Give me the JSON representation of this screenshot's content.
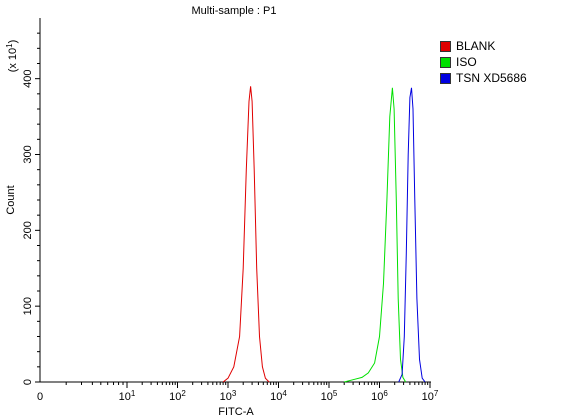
{
  "chart_data": {
    "type": "line",
    "title": "Multi-sample : P1",
    "xlabel": "FITC-A",
    "ylabel": "Count",
    "y_multiplier_label": "(x 10",
    "y_multiplier_exp": "1",
    "y_multiplier_close": ")",
    "x_scale": "log",
    "xlim": [
      0,
      10000000
    ],
    "ylim": [
      0,
      480
    ],
    "x_tick_values": [
      10,
      100,
      1000,
      10000,
      100000,
      1000000,
      10000000
    ],
    "x_tick_bases": [
      "10",
      "10",
      "10",
      "10",
      "10",
      "10",
      "10"
    ],
    "x_tick_exps": [
      "1",
      "2",
      "3",
      "4",
      "5",
      "6",
      "7"
    ],
    "x_zero_label": "0",
    "y_ticks": [
      0,
      100,
      200,
      300,
      400
    ],
    "y_tick_labels": [
      "0",
      "100",
      "200",
      "300",
      "400"
    ],
    "legend_position": "right",
    "series": [
      {
        "name": "BLANK",
        "color": "#e00000",
        "points": [
          [
            800,
            0
          ],
          [
            1000,
            5
          ],
          [
            1300,
            20
          ],
          [
            1700,
            60
          ],
          [
            2000,
            150
          ],
          [
            2300,
            280
          ],
          [
            2600,
            370
          ],
          [
            2800,
            390
          ],
          [
            3000,
            370
          ],
          [
            3300,
            280
          ],
          [
            3700,
            150
          ],
          [
            4200,
            60
          ],
          [
            4800,
            20
          ],
          [
            5500,
            5
          ],
          [
            6500,
            0
          ]
        ]
      },
      {
        "name": "ISO",
        "color": "#00e000",
        "points": [
          [
            200000,
            0
          ],
          [
            300000,
            3
          ],
          [
            450000,
            6
          ],
          [
            600000,
            12
          ],
          [
            800000,
            25
          ],
          [
            1000000,
            60
          ],
          [
            1200000,
            130
          ],
          [
            1400000,
            240
          ],
          [
            1600000,
            350
          ],
          [
            1800000,
            388
          ],
          [
            1950000,
            360
          ],
          [
            2150000,
            240
          ],
          [
            2350000,
            110
          ],
          [
            2600000,
            30
          ],
          [
            2900000,
            6
          ],
          [
            3300000,
            0
          ]
        ]
      },
      {
        "name": "TSN XD5686",
        "color": "#0000e0",
        "points": [
          [
            2400000,
            0
          ],
          [
            2800000,
            10
          ],
          [
            3100000,
            60
          ],
          [
            3400000,
            170
          ],
          [
            3700000,
            300
          ],
          [
            4000000,
            375
          ],
          [
            4300000,
            388
          ],
          [
            4600000,
            360
          ],
          [
            5000000,
            240
          ],
          [
            5500000,
            110
          ],
          [
            6200000,
            30
          ],
          [
            7000000,
            5
          ],
          [
            8000000,
            0
          ]
        ]
      }
    ]
  }
}
